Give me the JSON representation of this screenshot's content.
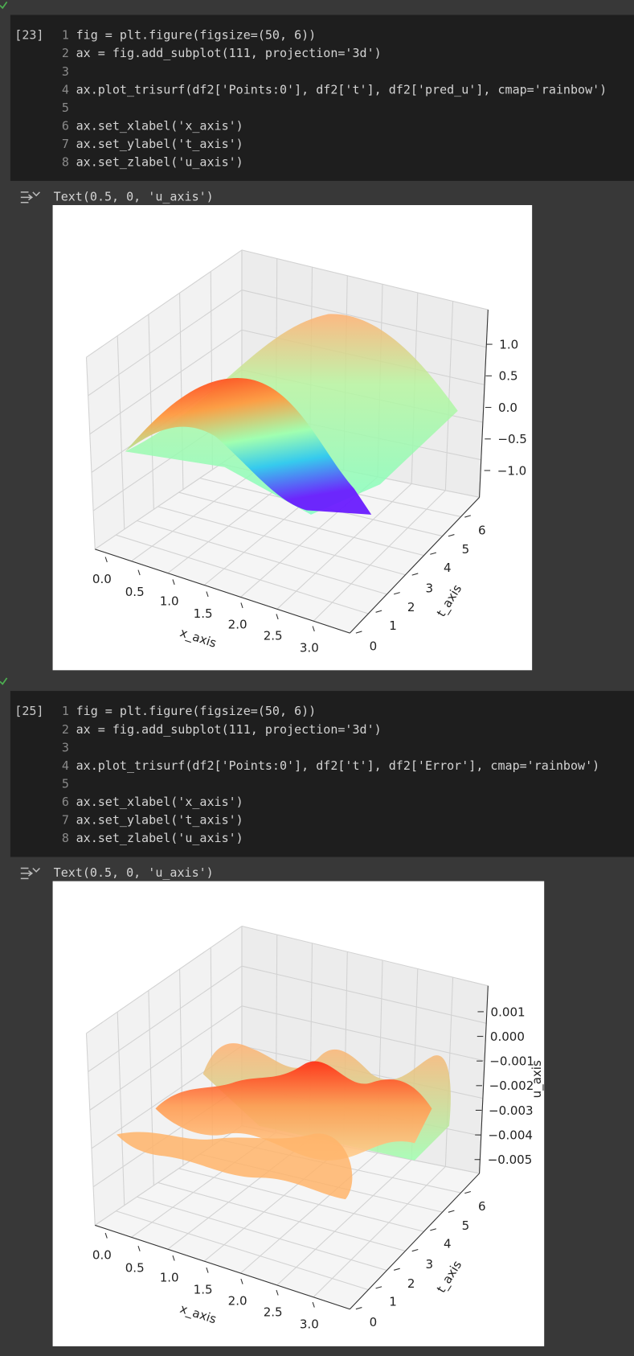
{
  "cells": [
    {
      "execution_count": "[23]",
      "code": [
        {
          "number": 1,
          "text": "fig = plt.figure(figsize=(50, 6))"
        },
        {
          "number": 2,
          "text": "ax = fig.add_subplot(111, projection='3d')"
        },
        {
          "number": 3
        },
        {
          "number": 4,
          "text": "ax.plot_trisurf(df2['Points:0'], df2['t'], df2['pred_u'], cmap='rainbow')"
        },
        {
          "number": 5
        },
        {
          "number": 6,
          "text": "ax.set_xlabel('x_axis')"
        },
        {
          "number": 7,
          "text": "ax.set_ylabel('t_axis')"
        },
        {
          "number": 8,
          "text": "ax.set_zlabel('u_axis')"
        }
      ],
      "output": {
        "text": "Text(0.5, 0, 'u_axis')",
        "plot": {
          "xticks": [
            "0.0",
            "0.5",
            "1.0",
            "1.5",
            "2.0",
            "2.5",
            "3.0"
          ],
          "xlabel": "x_axis",
          "yticks": [
            "0",
            "1",
            "2",
            "3",
            "4",
            "5",
            "6"
          ],
          "ylabel": "t_axis",
          "zticks": [
            "1.0",
            "0.5",
            "0.0",
            "−0.5",
            "−1.0"
          ]
        }
      }
    },
    {
      "execution_count": "[25]",
      "code": [
        {
          "number": 1,
          "text": "fig = plt.figure(figsize=(50, 6))"
        },
        {
          "number": 2,
          "text": "ax = fig.add_subplot(111, projection='3d')"
        },
        {
          "number": 3
        },
        {
          "number": 4,
          "text": "ax.plot_trisurf(df2['Points:0'], df2['t'], df2['Error'], cmap='rainbow')"
        },
        {
          "number": 5
        },
        {
          "number": 6,
          "text": "ax.set_xlabel('x_axis')"
        },
        {
          "number": 7,
          "text": "ax.set_ylabel('t_axis')"
        },
        {
          "number": 8,
          "text": "ax.set_zlabel('u_axis')"
        }
      ],
      "output": {
        "text": "Text(0.5, 0, 'u_axis')",
        "plot": {
          "xticks": [
            "0.0",
            "0.5",
            "1.0",
            "1.5",
            "2.0",
            "2.5",
            "3.0"
          ],
          "xlabel": "x_axis",
          "yticks": [
            "0",
            "1",
            "2",
            "3",
            "4",
            "5",
            "6"
          ],
          "ylabel": "t_axis",
          "zticks": [
            "0.001",
            "0.000",
            "−0.001",
            "−0.002",
            "−0.003",
            "−0.004",
            "−0.005"
          ],
          "zlabel": "u_axis"
        }
      }
    }
  ]
}
